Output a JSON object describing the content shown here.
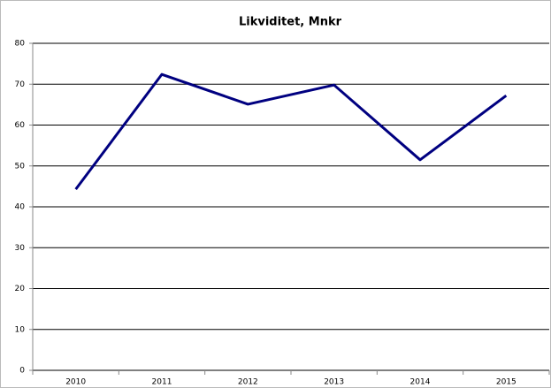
{
  "chart_data": {
    "type": "line",
    "title": "Likviditet, Mnkr",
    "categories": [
      "2010",
      "2011",
      "2012",
      "2013",
      "2014",
      "2015"
    ],
    "series": [
      {
        "name": "Likviditet",
        "color": "#000080",
        "values": [
          44.3,
          72.4,
          65.1,
          69.8,
          51.5,
          67.2
        ]
      }
    ],
    "ylim": [
      0,
      80
    ],
    "yticks": [
      0,
      10,
      20,
      30,
      40,
      50,
      60,
      70,
      80
    ],
    "grid": true
  }
}
